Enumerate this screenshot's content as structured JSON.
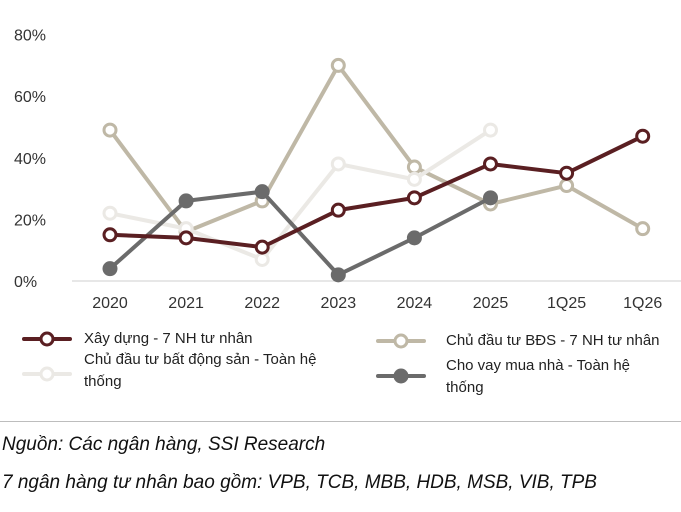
{
  "chart_data": {
    "type": "line",
    "categories": [
      "2020",
      "2021",
      "2022",
      "2023",
      "2024",
      "2025",
      "1Q25",
      "1Q26"
    ],
    "y_ticks": [
      "0%",
      "20%",
      "40%",
      "60%",
      "80%"
    ],
    "ylim": [
      0,
      80
    ],
    "grid": false,
    "legend_placement": "bottom",
    "series": [
      {
        "name": "Chủ đầu tư BĐS - 7 NH tư nhân",
        "color": "#bfb8a6",
        "values": [
          49,
          16,
          26,
          70,
          37,
          25,
          31,
          17
        ]
      },
      {
        "name": "Chủ đầu tư bất động sản - Toàn hệ thống",
        "color": "#ebe9e5",
        "values": [
          22,
          17,
          7,
          38,
          33,
          49,
          null,
          null
        ]
      },
      {
        "name": "Cho vay mua nhà - Toàn hệ thống",
        "color": "#6b6b6b",
        "values": [
          4,
          26,
          29,
          2,
          14,
          27,
          null,
          null
        ]
      },
      {
        "name": "Xây dựng - 7 NH tư nhân",
        "color": "#5a1f22",
        "values": [
          15,
          14,
          11,
          23,
          27,
          38,
          35,
          47
        ]
      }
    ]
  },
  "legend": [
    {
      "series": 3,
      "label": "Xây dựng - 7 NH tư nhân"
    },
    {
      "series": 1,
      "label": "Chủ đầu tư bất động sản - Toàn hệ thống"
    },
    {
      "series": 0,
      "label": "Chủ đầu tư BĐS - 7 NH tư nhân"
    },
    {
      "series": 2,
      "label": "Cho vay mua nhà - Toàn hệ thống"
    }
  ],
  "notes": {
    "source": "Nguồn: Các ngân hàng, SSI Research",
    "footnote": "7 ngân hàng tư nhân bao gồm: VPB, TCB, MBB, HDB, MSB, VIB, TPB"
  }
}
